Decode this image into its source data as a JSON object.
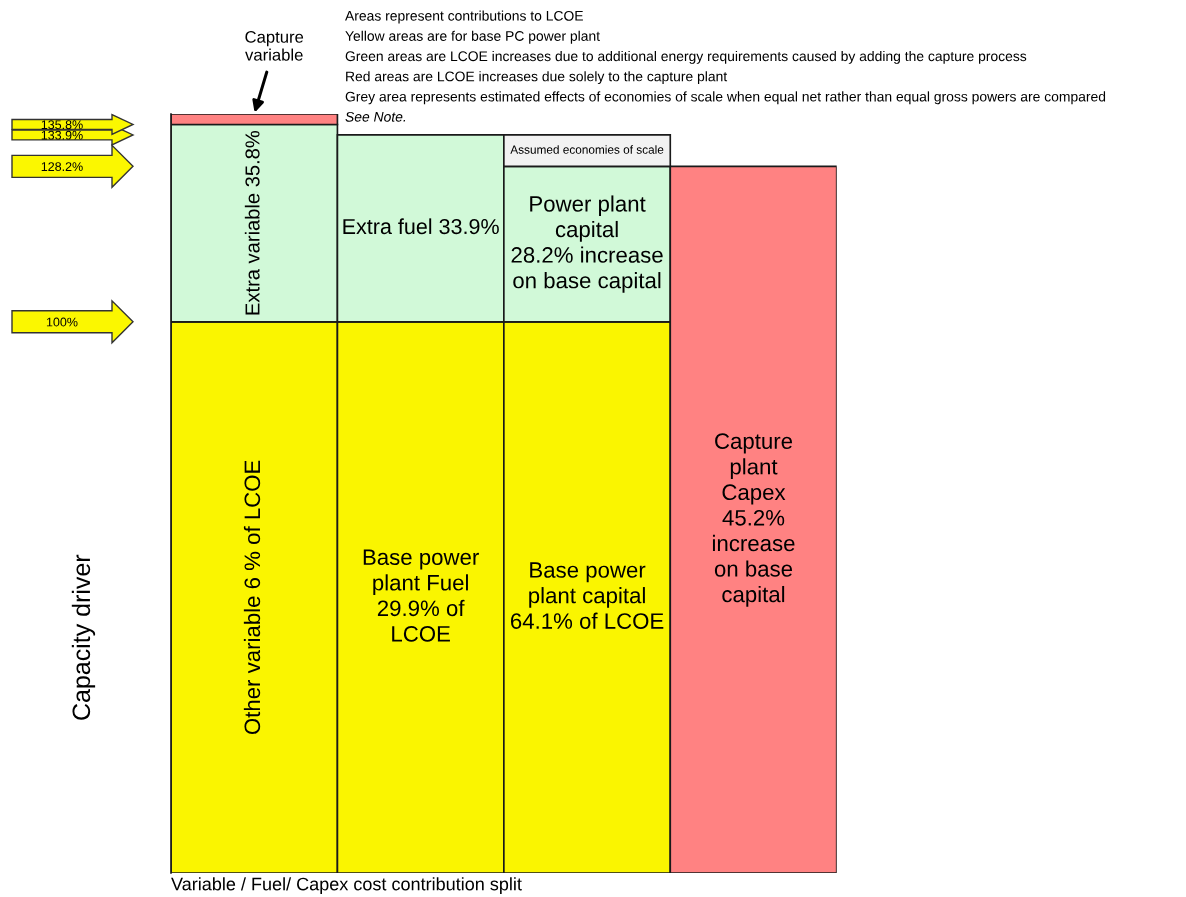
{
  "chart_data": {
    "type": "bar",
    "xlabel": "Variable / Fuel/ Capex cost contribution split",
    "ylabel": "Capacity driver",
    "annotations": [
      "Capture\nvariable",
      "Areas represent contributions to LCOE",
      "Yellow areas are for base PC power plant",
      "Green areas are LCOE increases due to additional energy requirements caused by adding the capture process",
      "Red areas are LCOE increases due solely to the capture plant",
      "Grey area represents estimated effects of economies of scale when equal net rather than equal gross powers are compared",
      "See Note."
    ],
    "categories": [
      null,
      null,
      null,
      null
    ],
    "stacked": true,
    "ylim": [
      0,
      137.7
    ],
    "yticks": [
      {
        "value": 100,
        "label": "100%"
      },
      {
        "value": 128.2,
        "label": "128.2%"
      },
      {
        "value": 133.9,
        "label": "133.9%"
      },
      {
        "value": 135.8,
        "label": "135.8%"
      }
    ],
    "series": [
      {
        "color": "#faf500",
        "values": [
          100,
          100,
          100,
          null
        ],
        "value_labels": [
          "Other variable 6 % of LCOE",
          "Base power\nplant Fuel\n29.9% of\nLCOE",
          "Base power\nplant capital\n64.1% of LCOE",
          null
        ]
      },
      {
        "color": "#d1f9d8",
        "values": [
          35.8,
          33.9,
          28.2,
          null
        ],
        "value_labels": [
          "Extra variable 35.8%",
          "Extra fuel 33.9%",
          "Power plant\ncapital\n28.2% increase\non base capital",
          null
        ]
      },
      {
        "color": "#ff8282",
        "values": [
          1.9,
          null,
          null,
          128.2
        ],
        "value_labels": [
          null,
          null,
          null,
          "Capture\nplant\nCapex\n45.2%\nincrease\non base\ncapital"
        ]
      },
      {
        "color": "#f2f2f2",
        "values": [
          null,
          null,
          5.7,
          null
        ],
        "value_labels": [
          null,
          null,
          "Assumed economies of scale",
          null
        ]
      }
    ]
  }
}
